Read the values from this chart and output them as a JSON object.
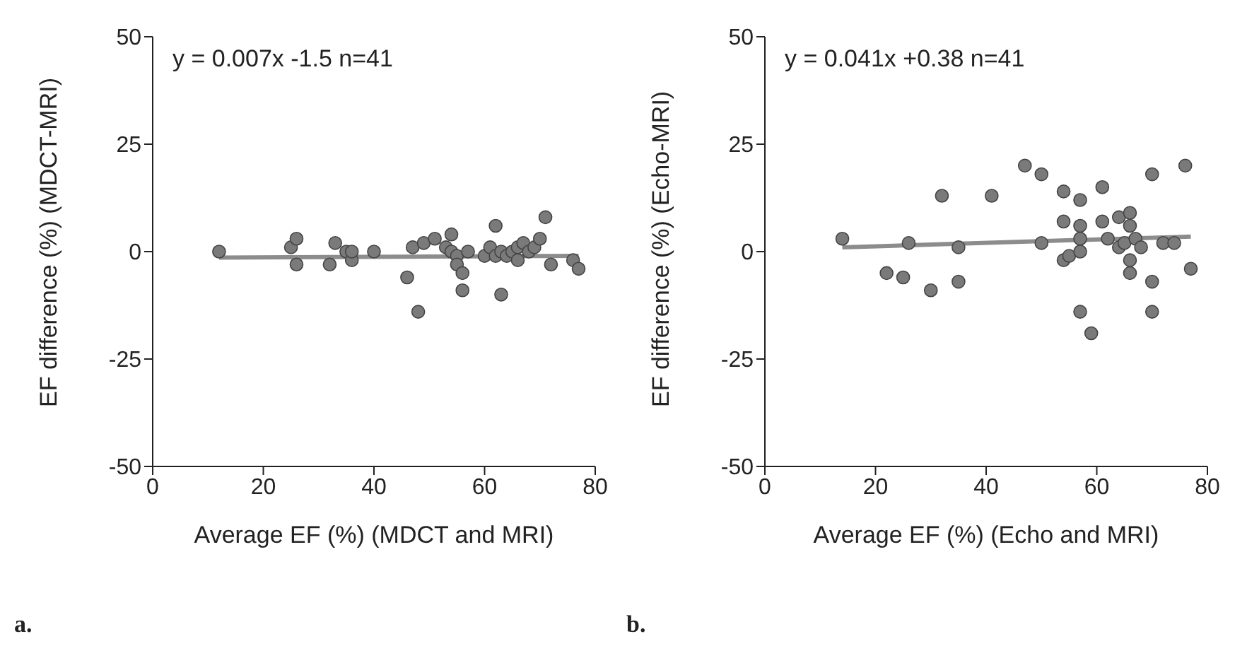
{
  "chart_data": [
    {
      "type": "scatter",
      "xlabel": "Average EF (%) (MDCT and MRI)",
      "ylabel": "EF difference (%) (MDCT-MRI)",
      "xlim": [
        0,
        80
      ],
      "xticks": [
        0,
        20,
        40,
        60,
        80
      ],
      "ylim": [
        -50,
        50
      ],
      "yticks": [
        -50,
        -25,
        0,
        25,
        50
      ],
      "marker": "circle",
      "grid": false,
      "annotations": [
        "y = 0.007x -1.5  n=41",
        "a."
      ],
      "series": [
        {
          "color": "#7a7a7a",
          "x": [
            12,
            25,
            26,
            26,
            32,
            33,
            35,
            36,
            36,
            40,
            46,
            47,
            48,
            49,
            51,
            53,
            54,
            54,
            55,
            55,
            56,
            56,
            57,
            60,
            61,
            62,
            62,
            63,
            63,
            64,
            65,
            66,
            66,
            67,
            68,
            69,
            70,
            71,
            72,
            76,
            77
          ],
          "values": [
            0,
            1,
            3,
            -3,
            -3,
            2,
            0,
            -2,
            0,
            0,
            -6,
            1,
            -14,
            2,
            3,
            1,
            4,
            0,
            -1,
            -3,
            -5,
            -9,
            0,
            -1,
            1,
            6,
            -1,
            -10,
            0,
            -1,
            0,
            1,
            -2,
            2,
            0,
            1,
            3,
            8,
            -3,
            -2,
            -4
          ]
        },
        {
          "type": "line",
          "marker": "none",
          "color": "#8c8c8c",
          "x": [
            12,
            77
          ],
          "values": [
            -1.4,
            -1.0
          ]
        }
      ]
    },
    {
      "type": "scatter",
      "xlabel": "Average EF (%) (Echo and MRI)",
      "ylabel": "EF difference (%) (Echo-MRI)",
      "xlim": [
        0,
        80
      ],
      "xticks": [
        0,
        20,
        40,
        60,
        80
      ],
      "ylim": [
        -50,
        50
      ],
      "yticks": [
        -50,
        -25,
        0,
        25,
        50
      ],
      "marker": "circle",
      "grid": false,
      "annotations": [
        "y = 0.041x +0.38  n=41",
        "b."
      ],
      "series": [
        {
          "color": "#7a7a7a",
          "x": [
            14,
            22,
            25,
            26,
            30,
            32,
            35,
            35,
            41,
            47,
            50,
            50,
            54,
            54,
            54,
            55,
            57,
            57,
            57,
            57,
            57,
            59,
            61,
            61,
            62,
            64,
            64,
            65,
            66,
            66,
            66,
            66,
            67,
            68,
            70,
            70,
            70,
            72,
            74,
            76,
            77
          ],
          "values": [
            3,
            -5,
            -6,
            2,
            -9,
            13,
            1,
            -7,
            13,
            20,
            18,
            2,
            14,
            7,
            -2,
            -1,
            12,
            6,
            3,
            0,
            -14,
            -19,
            15,
            7,
            3,
            8,
            1,
            2,
            9,
            6,
            -2,
            -5,
            3,
            1,
            18,
            -7,
            -14,
            2,
            2,
            20,
            -4
          ]
        },
        {
          "type": "line",
          "marker": "none",
          "color": "#8c8c8c",
          "x": [
            14,
            77
          ],
          "values": [
            1.0,
            3.5
          ]
        }
      ]
    }
  ]
}
